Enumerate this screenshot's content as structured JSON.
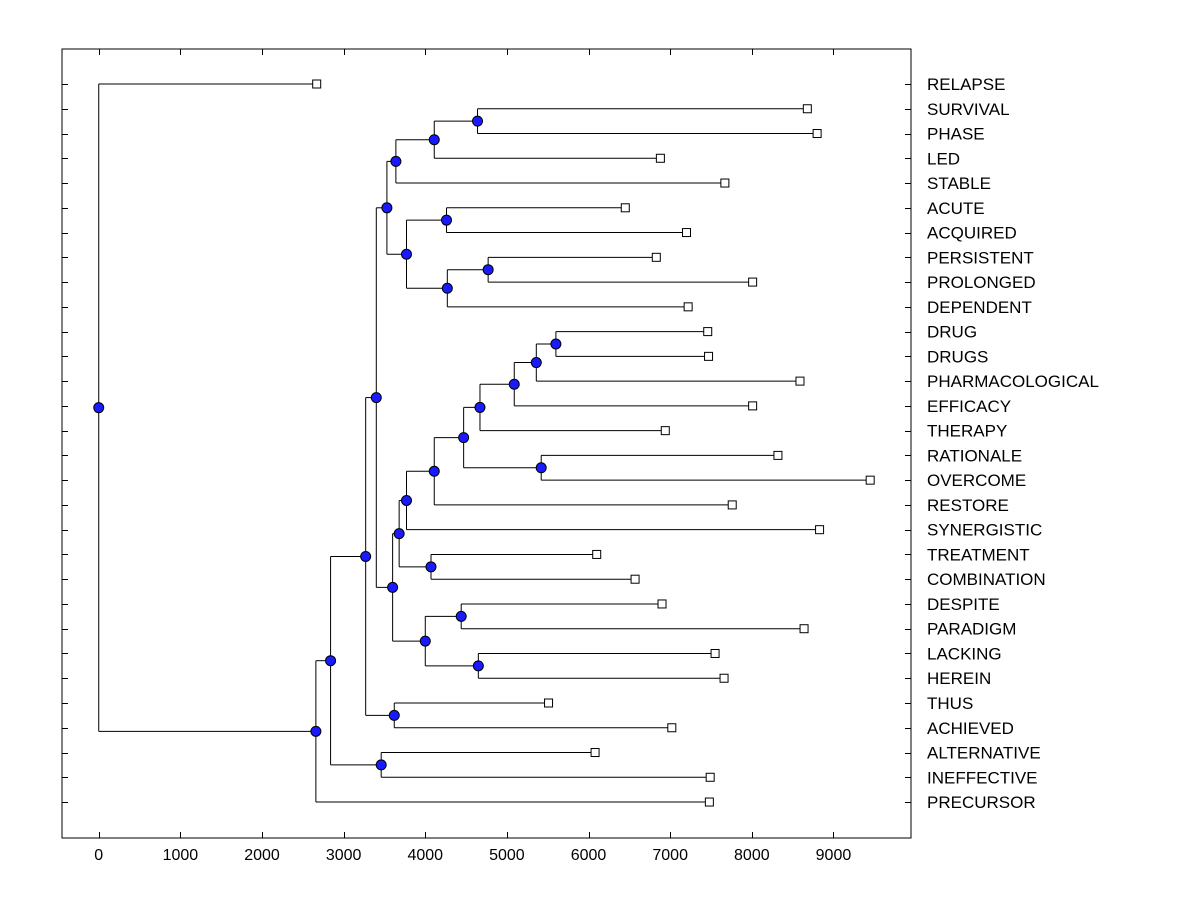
{
  "chart_data": {
    "type": "dendrogram",
    "title": "",
    "xlabel": "",
    "ylabel": "",
    "xlim": [
      -450,
      9950
    ],
    "x_ticks": [
      0,
      1000,
      2000,
      3000,
      4000,
      5000,
      6000,
      7000,
      8000,
      9000
    ],
    "leaves": [
      {
        "label": "RELAPSE",
        "x": 2670
      },
      {
        "label": "SURVIVAL",
        "x": 8680
      },
      {
        "label": "PHASE",
        "x": 8800
      },
      {
        "label": "LED",
        "x": 6880
      },
      {
        "label": "STABLE",
        "x": 7670
      },
      {
        "label": "ACUTE",
        "x": 6450
      },
      {
        "label": "ACQUIRED",
        "x": 7200
      },
      {
        "label": "PERSISTENT",
        "x": 6830
      },
      {
        "label": "PROLONGED",
        "x": 8010
      },
      {
        "label": "DEPENDENT",
        "x": 7220
      },
      {
        "label": "DRUG",
        "x": 7460
      },
      {
        "label": "DRUGS",
        "x": 7470
      },
      {
        "label": "PHARMACOLOGICAL",
        "x": 8590
      },
      {
        "label": "EFFICACY",
        "x": 8010
      },
      {
        "label": "THERAPY",
        "x": 6940
      },
      {
        "label": "RATIONALE",
        "x": 8320
      },
      {
        "label": "OVERCOME",
        "x": 9450
      },
      {
        "label": "RESTORE",
        "x": 7760
      },
      {
        "label": "SYNERGISTIC",
        "x": 8830
      },
      {
        "label": "TREATMENT",
        "x": 6100
      },
      {
        "label": "COMBINATION",
        "x": 6570
      },
      {
        "label": "DESPITE",
        "x": 6900
      },
      {
        "label": "PARADIGM",
        "x": 8640
      },
      {
        "label": "LACKING",
        "x": 7550
      },
      {
        "label": "HEREIN",
        "x": 7660
      },
      {
        "label": "THUS",
        "x": 5510
      },
      {
        "label": "ACHIEVED",
        "x": 7020
      },
      {
        "label": "ALTERNATIVE",
        "x": 6080
      },
      {
        "label": "INEFFECTIVE",
        "x": 7490
      },
      {
        "label": "PRECURSOR",
        "x": 7480
      }
    ],
    "merges": [
      {
        "id": "a1",
        "x": 4640,
        "children": [
          "SURVIVAL",
          "PHASE"
        ]
      },
      {
        "id": "a2",
        "x": 4110,
        "children": [
          "a1",
          "LED"
        ]
      },
      {
        "id": "a3",
        "x": 3640,
        "children": [
          "a2",
          "STABLE"
        ]
      },
      {
        "id": "b1",
        "x": 4260,
        "children": [
          "ACUTE",
          "ACQUIRED"
        ]
      },
      {
        "id": "b2",
        "x": 4770,
        "children": [
          "PERSISTENT",
          "PROLONGED"
        ]
      },
      {
        "id": "b3",
        "x": 4270,
        "children": [
          "b2",
          "DEPENDENT"
        ]
      },
      {
        "id": "b4",
        "x": 3770,
        "children": [
          "b1",
          "b3"
        ]
      },
      {
        "id": "ab",
        "x": 3530,
        "children": [
          "a3",
          "b4"
        ]
      },
      {
        "id": "c1",
        "x": 5600,
        "children": [
          "DRUG",
          "DRUGS"
        ]
      },
      {
        "id": "c2",
        "x": 5360,
        "children": [
          "c1",
          "PHARMACOLOGICAL"
        ]
      },
      {
        "id": "c3",
        "x": 5090,
        "children": [
          "c2",
          "EFFICACY"
        ]
      },
      {
        "id": "c4",
        "x": 4670,
        "children": [
          "c3",
          "THERAPY"
        ]
      },
      {
        "id": "c5",
        "x": 5420,
        "children": [
          "RATIONALE",
          "OVERCOME"
        ]
      },
      {
        "id": "c6",
        "x": 4470,
        "children": [
          "c4",
          "c5"
        ]
      },
      {
        "id": "c7",
        "x": 4110,
        "children": [
          "c6",
          "RESTORE"
        ]
      },
      {
        "id": "c8",
        "x": 3770,
        "children": [
          "c7",
          "SYNERGISTIC"
        ]
      },
      {
        "id": "d1",
        "x": 4070,
        "children": [
          "TREATMENT",
          "COMBINATION"
        ]
      },
      {
        "id": "c9",
        "x": 3680,
        "children": [
          "c8",
          "d1"
        ]
      },
      {
        "id": "e1",
        "x": 4440,
        "children": [
          "DESPITE",
          "PARADIGM"
        ]
      },
      {
        "id": "e2",
        "x": 4650,
        "children": [
          "LACKING",
          "HEREIN"
        ]
      },
      {
        "id": "e3",
        "x": 4000,
        "children": [
          "e1",
          "e2"
        ]
      },
      {
        "id": "f1",
        "x": 3600,
        "children": [
          "c9",
          "e3"
        ]
      },
      {
        "id": "g1",
        "x": 3400,
        "children": [
          "ab",
          "f1"
        ]
      },
      {
        "id": "h1",
        "x": 3620,
        "children": [
          "THUS",
          "ACHIEVED"
        ]
      },
      {
        "id": "g2",
        "x": 3270,
        "children": [
          "g1",
          "h1"
        ]
      },
      {
        "id": "i1",
        "x": 3460,
        "children": [
          "ALTERNATIVE",
          "INEFFECTIVE"
        ]
      },
      {
        "id": "g3",
        "x": 2840,
        "children": [
          "g2",
          "i1"
        ]
      },
      {
        "id": "g4",
        "x": 2660,
        "children": [
          "g3",
          "PRECURSOR"
        ]
      },
      {
        "id": "root",
        "x": 0,
        "children": [
          "RELAPSE",
          "g4"
        ]
      }
    ],
    "colors": {
      "node": "#1a1aff",
      "line": "#000000",
      "leaf_marker": "#ffffff"
    }
  }
}
